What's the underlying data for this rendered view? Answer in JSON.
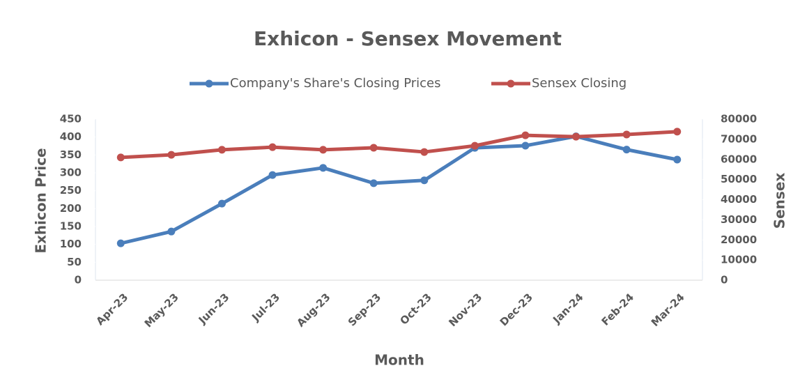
{
  "chart_data": {
    "type": "line",
    "title": "Exhicon - Sensex Movement",
    "x_label": "Month",
    "y_label": "Exhicon Price",
    "y2_label": "Sensex",
    "categories": [
      "Apr-23",
      "May-23",
      "Jun-23",
      "Jul-23",
      "Aug-23",
      "Sep-23",
      "Oct-23",
      "Nov-23",
      "Dec-23",
      "Jan-24",
      "Feb-24",
      "Mar-24"
    ],
    "series": [
      {
        "name": "Company's Share's Closing Prices",
        "color": "#4a7ebb",
        "values": [
          103,
          136,
          214,
          294,
          314,
          271,
          279,
          370,
          376,
          402,
          365,
          337
        ]
      },
      {
        "name": "Sensex Closing",
        "color": "#c0504d",
        "axis": "y2",
        "values": [
          61000,
          62300,
          64800,
          66100,
          64800,
          65800,
          63700,
          66800,
          72000,
          71300,
          72400,
          73800
        ]
      }
    ],
    "ylim": [
      0,
      450
    ],
    "yticks": [
      0,
      50,
      100,
      150,
      200,
      250,
      300,
      350,
      400,
      450
    ],
    "y2lim": [
      0,
      80000
    ],
    "y2ticks": [
      0,
      10000,
      20000,
      30000,
      40000,
      50000,
      60000,
      70000,
      80000
    ],
    "legend": "top"
  }
}
